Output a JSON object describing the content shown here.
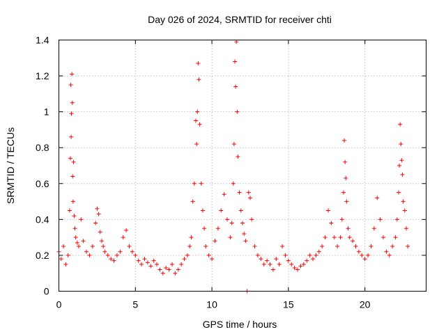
{
  "chart_data": {
    "type": "scatter",
    "title": "Day 026 of 2024, SRMTID for receiver chti",
    "xlabel": "GPS time / hours",
    "ylabel": "SRMTID / TECUs",
    "xlim": [
      0,
      24
    ],
    "ylim": [
      0,
      1.4
    ],
    "x_ticks": [
      0,
      5,
      10,
      15,
      20
    ],
    "x_tick_labels": [
      "0",
      "5",
      "10",
      "15",
      "20"
    ],
    "y_ticks": [
      0,
      0.2,
      0.4,
      0.6,
      0.8,
      1,
      1.2,
      1.4
    ],
    "y_tick_labels": [
      "0",
      "0.2",
      "0.4",
      "0.6",
      "0.8",
      "1",
      "1.2",
      "1.4"
    ],
    "grid": true,
    "marker": "plus",
    "color": "#ff0000",
    "series": [
      {
        "name": "SRMTID",
        "x": [
          0.0,
          0.15,
          0.3,
          0.45,
          0.6,
          0.7,
          0.75,
          0.78,
          0.8,
          0.82,
          0.85,
          0.88,
          0.9,
          0.93,
          0.96,
          1.0,
          1.05,
          1.1,
          1.2,
          1.3,
          1.45,
          1.6,
          1.8,
          2.0,
          2.2,
          2.4,
          2.5,
          2.6,
          2.7,
          2.8,
          2.9,
          3.0,
          3.2,
          3.4,
          3.6,
          3.8,
          4.0,
          4.2,
          4.4,
          4.6,
          4.8,
          5.0,
          5.2,
          5.4,
          5.6,
          5.8,
          6.0,
          6.2,
          6.4,
          6.6,
          6.8,
          7.0,
          7.2,
          7.4,
          7.6,
          7.8,
          8.0,
          8.2,
          8.4,
          8.55,
          8.65,
          8.75,
          8.85,
          8.95,
          9.0,
          9.05,
          9.1,
          9.15,
          9.2,
          9.3,
          9.4,
          9.5,
          9.6,
          9.8,
          10.0,
          10.2,
          10.4,
          10.6,
          10.8,
          11.0,
          11.2,
          11.3,
          11.4,
          11.45,
          11.5,
          11.55,
          11.6,
          11.65,
          11.7,
          11.8,
          11.9,
          12.0,
          12.1,
          12.2,
          12.3,
          12.4,
          12.5,
          12.6,
          12.8,
          13.0,
          13.2,
          13.4,
          13.6,
          13.8,
          14.0,
          14.2,
          14.4,
          14.6,
          14.8,
          15.0,
          15.2,
          15.4,
          15.6,
          15.8,
          16.0,
          16.2,
          16.4,
          16.6,
          16.8,
          17.0,
          17.2,
          17.4,
          17.6,
          17.8,
          18.0,
          18.2,
          18.4,
          18.5,
          18.6,
          18.65,
          18.7,
          18.75,
          18.8,
          18.9,
          19.0,
          19.2,
          19.4,
          19.6,
          19.8,
          20.0,
          20.2,
          20.4,
          20.6,
          20.8,
          21.0,
          21.2,
          21.4,
          21.6,
          21.8,
          22.0,
          22.1,
          22.2,
          22.25,
          22.3,
          22.35,
          22.4,
          22.45,
          22.5,
          22.6,
          22.7,
          22.8
        ],
        "y": [
          0.22,
          0.18,
          0.25,
          0.15,
          0.2,
          0.45,
          0.74,
          1.15,
          0.86,
          0.99,
          1.21,
          1.05,
          0.64,
          0.5,
          0.72,
          0.42,
          0.35,
          0.3,
          0.27,
          0.25,
          0.4,
          0.28,
          0.22,
          0.2,
          0.25,
          0.38,
          0.46,
          0.43,
          0.33,
          0.28,
          0.25,
          0.22,
          0.2,
          0.18,
          0.17,
          0.2,
          0.22,
          0.3,
          0.34,
          0.25,
          0.22,
          0.2,
          0.17,
          0.15,
          0.18,
          0.16,
          0.14,
          0.17,
          0.15,
          0.12,
          0.1,
          0.13,
          0.12,
          0.15,
          0.1,
          0.12,
          0.15,
          0.18,
          0.2,
          0.25,
          0.3,
          0.5,
          0.6,
          0.95,
          0.82,
          1.0,
          1.27,
          1.18,
          0.93,
          0.6,
          0.45,
          0.35,
          0.25,
          0.2,
          0.18,
          0.28,
          0.35,
          0.45,
          0.54,
          0.4,
          0.3,
          0.38,
          0.6,
          0.82,
          1.28,
          1.14,
          1.39,
          1.0,
          0.75,
          0.55,
          0.45,
          0.38,
          0.32,
          0.28,
          0.0,
          0.55,
          0.52,
          0.4,
          0.25,
          0.2,
          0.18,
          0.15,
          0.17,
          0.15,
          0.12,
          0.18,
          0.15,
          0.25,
          0.2,
          0.17,
          0.15,
          0.13,
          0.12,
          0.14,
          0.15,
          0.17,
          0.2,
          0.18,
          0.2,
          0.22,
          0.25,
          0.3,
          0.45,
          0.38,
          0.3,
          0.25,
          0.3,
          0.4,
          0.55,
          0.84,
          0.72,
          0.63,
          0.5,
          0.35,
          0.3,
          0.28,
          0.25,
          0.22,
          0.2,
          0.18,
          0.2,
          0.25,
          0.35,
          0.52,
          0.4,
          0.3,
          0.22,
          0.2,
          0.25,
          0.3,
          0.4,
          0.55,
          0.7,
          0.93,
          0.82,
          0.73,
          0.65,
          0.5,
          0.45,
          0.35,
          0.25
        ]
      }
    ]
  }
}
